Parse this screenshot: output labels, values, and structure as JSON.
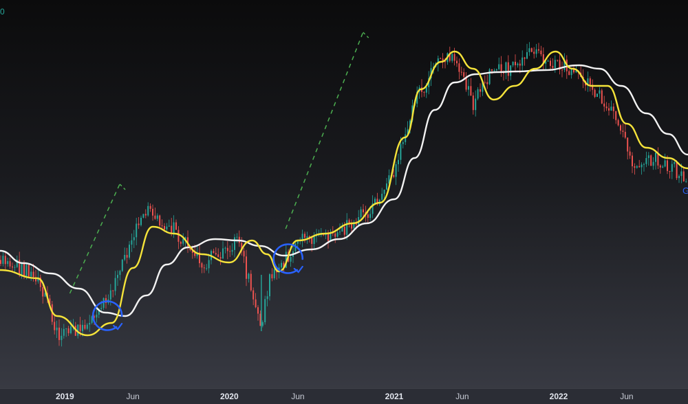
{
  "chart_data": {
    "type": "line",
    "title": "",
    "xlabel": "",
    "ylabel": "",
    "x_range": [
      "2018-08-10",
      "2022-10-15"
    ],
    "y_range": [
      0,
      587
    ],
    "y_scale": "log",
    "grid": false,
    "x_tick_labels": [
      {
        "label": "2019",
        "date": "2019-01-01",
        "major": true
      },
      {
        "label": "Jun",
        "date": "2019-06-01",
        "major": false
      },
      {
        "label": "2020",
        "date": "2020-01-01",
        "major": true
      },
      {
        "label": "Jun",
        "date": "2020-06-01",
        "major": false
      },
      {
        "label": "2021",
        "date": "2021-01-01",
        "major": true
      },
      {
        "label": "Jun",
        "date": "2021-06-01",
        "major": false
      },
      {
        "label": "2022",
        "date": "2022-01-01",
        "major": true
      },
      {
        "label": "Jun",
        "date": "2022-06-01",
        "major": false
      }
    ],
    "top_left_label": "0",
    "right_edge_label": "G",
    "colors": {
      "up": "#26a69a",
      "down": "#ef5350",
      "fast_ma": "#f5e33a",
      "slow_ma": "#f2f2f2",
      "projection": "#4caf50",
      "annotation": "#2962ff"
    },
    "series": [
      {
        "style": "candlestick",
        "x": [
          "2018-08-10",
          "2018-11-01",
          "2018-12-20",
          "2019-03-01",
          "2019-05-01",
          "2019-06-25",
          "2019-09-01",
          "2019-11-01",
          "2020-01-20",
          "2020-03-12",
          "2020-04-01",
          "2020-06-10",
          "2020-08-01",
          "2020-10-01",
          "2020-11-15",
          "2021-01-01",
          "2021-02-15",
          "2021-04-10",
          "2021-05-20",
          "2021-06-25",
          "2021-08-01",
          "2021-09-15",
          "2021-11-05",
          "2022-01-10",
          "2022-03-01",
          "2022-04-20",
          "2022-06-15",
          "2022-08-01",
          "2022-10-15"
        ],
        "y": [
          378,
          400,
          490,
          470,
          400,
          302,
          335,
          385,
          350,
          475,
          400,
          350,
          345,
          325,
          300,
          250,
          150,
          85,
          85,
          150,
          105,
          100,
          75,
          95,
          120,
          150,
          235,
          230,
          258
        ]
      },
      {
        "style": "line",
        "x": [
          "2018-08-10",
          "2018-11-01",
          "2018-12-15",
          "2019-02-20",
          "2019-04-15",
          "2019-06-01",
          "2019-07-15",
          "2019-09-01",
          "2019-11-01",
          "2020-01-01",
          "2020-02-20",
          "2020-03-25",
          "2020-04-20",
          "2020-06-01",
          "2020-08-01",
          "2020-10-01",
          "2020-12-01",
          "2021-01-25",
          "2021-03-01",
          "2021-04-15",
          "2021-05-15",
          "2021-06-25",
          "2021-08-10",
          "2021-09-25",
          "2021-11-10",
          "2021-12-25",
          "2022-02-01",
          "2022-03-15",
          "2022-04-20",
          "2022-06-01",
          "2022-07-15",
          "2022-09-01",
          "2022-10-15"
        ],
        "y": [
          393,
          405,
          460,
          488,
          470,
          390,
          330,
          340,
          370,
          382,
          350,
          370,
          395,
          350,
          340,
          325,
          295,
          200,
          130,
          90,
          75,
          100,
          145,
          125,
          100,
          75,
          100,
          125,
          125,
          180,
          215,
          230,
          245
        ]
      },
      {
        "style": "line",
        "x": [
          "2018-08-10",
          "2018-10-01",
          "2018-12-01",
          "2019-02-01",
          "2019-04-01",
          "2019-05-15",
          "2019-07-01",
          "2019-08-15",
          "2019-10-01",
          "2019-12-01",
          "2020-01-20",
          "2020-03-10",
          "2020-05-01",
          "2020-07-01",
          "2020-09-01",
          "2020-11-01",
          "2021-01-01",
          "2021-02-15",
          "2021-04-01",
          "2021-05-15",
          "2021-07-01",
          "2021-08-15",
          "2021-10-01",
          "2021-12-01",
          "2022-02-15",
          "2022-04-01",
          "2022-05-20",
          "2022-07-15",
          "2022-09-01",
          "2022-10-15"
        ],
        "y": [
          365,
          383,
          398,
          420,
          455,
          460,
          430,
          385,
          360,
          348,
          350,
          358,
          372,
          363,
          348,
          325,
          290,
          230,
          160,
          120,
          108,
          105,
          104,
          102,
          95,
          100,
          125,
          165,
          195,
          225
        ]
      }
    ],
    "annotations": [
      {
        "type": "dashed-projection",
        "x": [
          "2019-01-12",
          "2019-05-15"
        ],
        "y": [
          427,
          266
        ]
      },
      {
        "type": "dashed-projection",
        "x": [
          "2020-05-05",
          "2020-11-05"
        ],
        "y": [
          333,
          45
        ]
      },
      {
        "type": "circle",
        "x": "2019-04-10",
        "y": 452
      },
      {
        "type": "circle",
        "x": "2020-05-15",
        "y": 369
      }
    ]
  }
}
